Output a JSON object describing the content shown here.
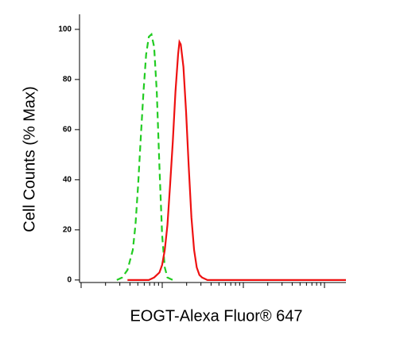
{
  "chart_data": {
    "type": "line",
    "x_label": "EOGT-Alexa Fluor® 647",
    "y_label": "Cell Counts (% Max)",
    "ylim": [
      -1,
      106
    ],
    "yticks": [
      0,
      20,
      40,
      60,
      80,
      100
    ],
    "xlim": [
      0,
      100
    ],
    "series": [
      {
        "color": "#22cc22",
        "dash": true,
        "x": [
          14,
          16,
          18,
          20,
          21,
          22,
          23,
          24,
          25,
          26,
          27,
          28,
          29,
          30,
          31,
          32,
          33,
          35
        ],
        "values": [
          0,
          1,
          4,
          12,
          22,
          38,
          57,
          75,
          90,
          97,
          98,
          93,
          75,
          45,
          18,
          5,
          1,
          0
        ]
      },
      {
        "color": "#ee1111",
        "dash": false,
        "x": [
          18,
          26,
          28,
          30,
          31,
          32,
          33,
          34,
          35,
          36,
          37,
          37.5,
          38,
          39,
          40,
          41,
          42,
          43,
          44,
          45,
          46,
          48,
          50,
          100
        ],
        "values": [
          0,
          0,
          1,
          3,
          6,
          12,
          22,
          38,
          55,
          75,
          90,
          95,
          94,
          85,
          67,
          45,
          25,
          12,
          5,
          2,
          1,
          0,
          0,
          0
        ]
      }
    ]
  }
}
